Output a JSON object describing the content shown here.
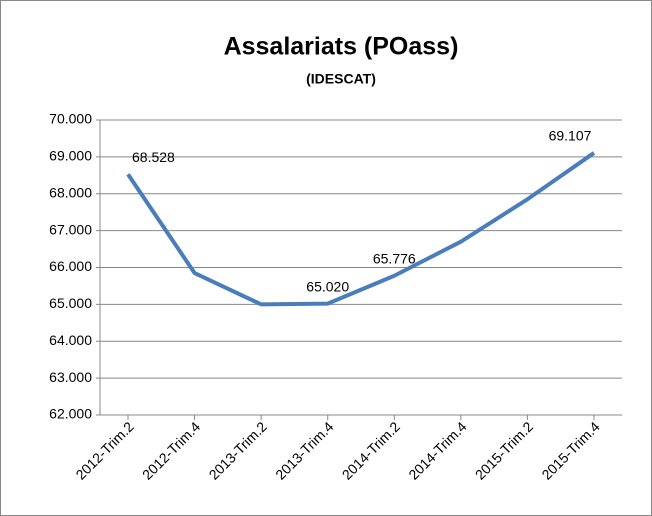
{
  "chart_data": {
    "type": "line",
    "title": "Assalariats (POass)",
    "subtitle": "(IDESCAT)",
    "categories": [
      "2012-Trim.2",
      "2012-Trim.4",
      "2013-Trim.2",
      "2013-Trim.4",
      "2014-Trim.2",
      "2014-Trim.4",
      "2015-Trim.2",
      "2015-Trim.4"
    ],
    "series": [
      {
        "name": "Assalariats",
        "color": "#4a7ebb",
        "values": [
          68528,
          65850,
          65000,
          65020,
          65776,
          66700,
          67850,
          69107
        ],
        "value_labels": [
          "68.528",
          null,
          null,
          "65.020",
          "65.776",
          null,
          null,
          "69.107"
        ]
      }
    ],
    "ylim": [
      62000,
      70000
    ],
    "yticks": [
      {
        "value": 62000,
        "label": "62.000"
      },
      {
        "value": 63000,
        "label": "63.000"
      },
      {
        "value": 64000,
        "label": "64.000"
      },
      {
        "value": 65000,
        "label": "65.000"
      },
      {
        "value": 66000,
        "label": "66.000"
      },
      {
        "value": 67000,
        "label": "67.000"
      },
      {
        "value": 68000,
        "label": "68.000"
      },
      {
        "value": 69000,
        "label": "69.000"
      },
      {
        "value": 70000,
        "label": "70.000"
      }
    ],
    "grid": true
  }
}
